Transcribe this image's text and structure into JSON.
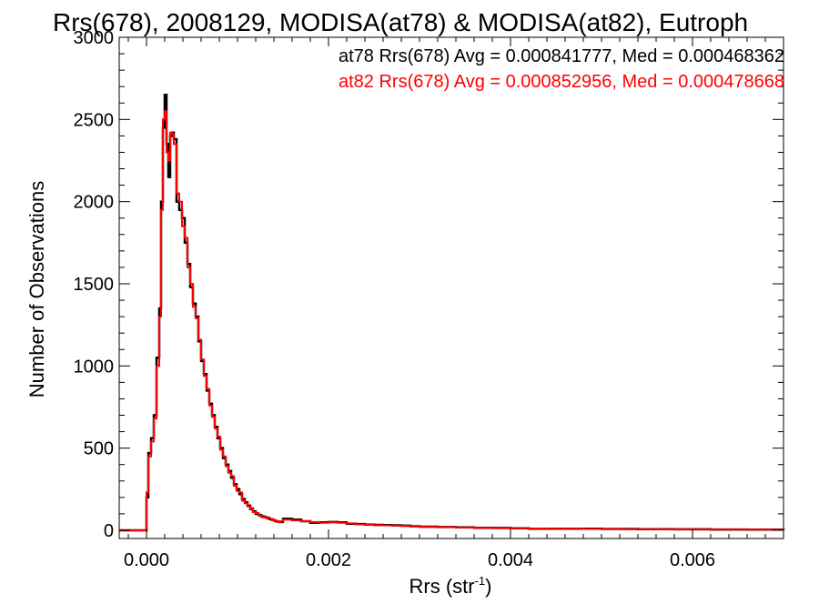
{
  "chart_data": {
    "type": "line",
    "title": "Rrs(678), 2008129, MODISA(at78) & MODISA(at82), Eutroph",
    "xlabel": "Rrs (str",
    "xlabel_sup": "-1",
    "xlabel_end": ")",
    "ylabel": "Number of Observations",
    "xlim": [
      -0.0003,
      0.007
    ],
    "ylim": [
      -50,
      3000
    ],
    "x_ticks": [
      0.0,
      0.002,
      0.004,
      0.006
    ],
    "x_tick_labels": [
      "0.000",
      "0.002",
      "0.004",
      "0.006"
    ],
    "y_ticks": [
      0,
      500,
      1000,
      1500,
      2000,
      2500,
      3000
    ],
    "y_tick_labels": [
      "0",
      "500",
      "1000",
      "1500",
      "2000",
      "2500",
      "3000"
    ],
    "grid": false,
    "legend_placement": "top-right",
    "series": [
      {
        "name": "at78 Rrs(678) Avg = 0.000841777, Med = 0.000468362",
        "color": "#000000",
        "x": [
          -0.0003,
          -0.0002,
          -0.0001,
          -5e-05,
          0.0,
          2e-05,
          5e-05,
          8e-05,
          0.00011,
          0.00014,
          0.00016,
          0.00018,
          0.0002,
          0.00022,
          0.00024,
          0.00026,
          0.00028,
          0.0003,
          0.00033,
          0.00036,
          0.00039,
          0.00042,
          0.00045,
          0.00048,
          0.00051,
          0.00054,
          0.00057,
          0.0006,
          0.00063,
          0.00066,
          0.00069,
          0.00072,
          0.00075,
          0.00078,
          0.00081,
          0.00084,
          0.00087,
          0.0009,
          0.00093,
          0.00096,
          0.00099,
          0.00102,
          0.00105,
          0.00108,
          0.00111,
          0.00114,
          0.00117,
          0.0012,
          0.00123,
          0.00126,
          0.00129,
          0.00132,
          0.00135,
          0.00138,
          0.00141,
          0.00144,
          0.00147,
          0.0015,
          0.0016,
          0.0017,
          0.0018,
          0.0019,
          0.002,
          0.0021,
          0.0022,
          0.0023,
          0.0024,
          0.0025,
          0.0026,
          0.0027,
          0.0028,
          0.0029,
          0.003,
          0.0032,
          0.0034,
          0.0036,
          0.0038,
          0.004,
          0.0042,
          0.0044,
          0.0046,
          0.0048,
          0.005,
          0.0052,
          0.0054,
          0.0056,
          0.0058,
          0.006,
          0.0062,
          0.0064,
          0.0066,
          0.0068,
          0.007
        ],
        "y": [
          0,
          0,
          0,
          0,
          200,
          470,
          560,
          700,
          1050,
          1350,
          2000,
          2450,
          2650,
          2350,
          2150,
          2400,
          2420,
          2380,
          2000,
          1950,
          1900,
          1750,
          1620,
          1480,
          1380,
          1300,
          1150,
          1030,
          950,
          850,
          770,
          700,
          630,
          560,
          500,
          440,
          400,
          360,
          320,
          280,
          250,
          220,
          190,
          170,
          150,
          130,
          115,
          100,
          92,
          85,
          80,
          75,
          68,
          62,
          56,
          52,
          50,
          70,
          65,
          55,
          45,
          48,
          50,
          48,
          40,
          38,
          35,
          33,
          32,
          30,
          28,
          25,
          22,
          20,
          18,
          15,
          14,
          12,
          10,
          10,
          9,
          9,
          8,
          8,
          7,
          7,
          6,
          6,
          5,
          5,
          4,
          4,
          0
        ]
      },
      {
        "name": "at82 Rrs(678) Avg = 0.000852956, Med = 0.000478668",
        "color": "#ff0000",
        "x": [
          -0.0003,
          -0.0002,
          -0.0001,
          -5e-05,
          0.0,
          2e-05,
          5e-05,
          8e-05,
          0.00011,
          0.00014,
          0.00016,
          0.00018,
          0.0002,
          0.00022,
          0.00024,
          0.00026,
          0.00028,
          0.0003,
          0.00033,
          0.00036,
          0.00039,
          0.00042,
          0.00045,
          0.00048,
          0.00051,
          0.00054,
          0.00057,
          0.0006,
          0.00063,
          0.00066,
          0.00069,
          0.00072,
          0.00075,
          0.00078,
          0.00081,
          0.00084,
          0.00087,
          0.0009,
          0.00093,
          0.00096,
          0.00099,
          0.00102,
          0.00105,
          0.00108,
          0.00111,
          0.00114,
          0.00117,
          0.0012,
          0.00123,
          0.00126,
          0.00129,
          0.00132,
          0.00135,
          0.00138,
          0.00141,
          0.00144,
          0.00147,
          0.0015,
          0.0016,
          0.0017,
          0.0018,
          0.0019,
          0.002,
          0.0021,
          0.0022,
          0.0023,
          0.0024,
          0.0025,
          0.0026,
          0.0027,
          0.0028,
          0.0029,
          0.003,
          0.0032,
          0.0034,
          0.0036,
          0.0038,
          0.004,
          0.0042,
          0.0044,
          0.0046,
          0.0048,
          0.005,
          0.0052,
          0.0054,
          0.0056,
          0.0058,
          0.006,
          0.0062,
          0.0064,
          0.0066,
          0.0068,
          0.007
        ],
        "y": [
          0,
          0,
          0,
          0,
          230,
          450,
          540,
          680,
          1000,
          1300,
          1950,
          2500,
          2550,
          2300,
          2250,
          2420,
          2410,
          2350,
          2050,
          2000,
          1850,
          1780,
          1600,
          1500,
          1360,
          1290,
          1160,
          1040,
          940,
          860,
          760,
          690,
          620,
          570,
          490,
          450,
          390,
          350,
          330,
          270,
          240,
          230,
          180,
          165,
          145,
          135,
          110,
          105,
          90,
          80,
          78,
          72,
          70,
          60,
          58,
          50,
          55,
          65,
          60,
          55,
          50,
          45,
          48,
          45,
          42,
          36,
          35,
          30,
          30,
          28,
          26,
          24,
          21,
          19,
          17,
          15,
          13,
          12,
          11,
          10,
          9,
          8,
          8,
          7,
          7,
          6,
          6,
          5,
          5,
          5,
          4,
          3,
          0
        ]
      }
    ]
  }
}
